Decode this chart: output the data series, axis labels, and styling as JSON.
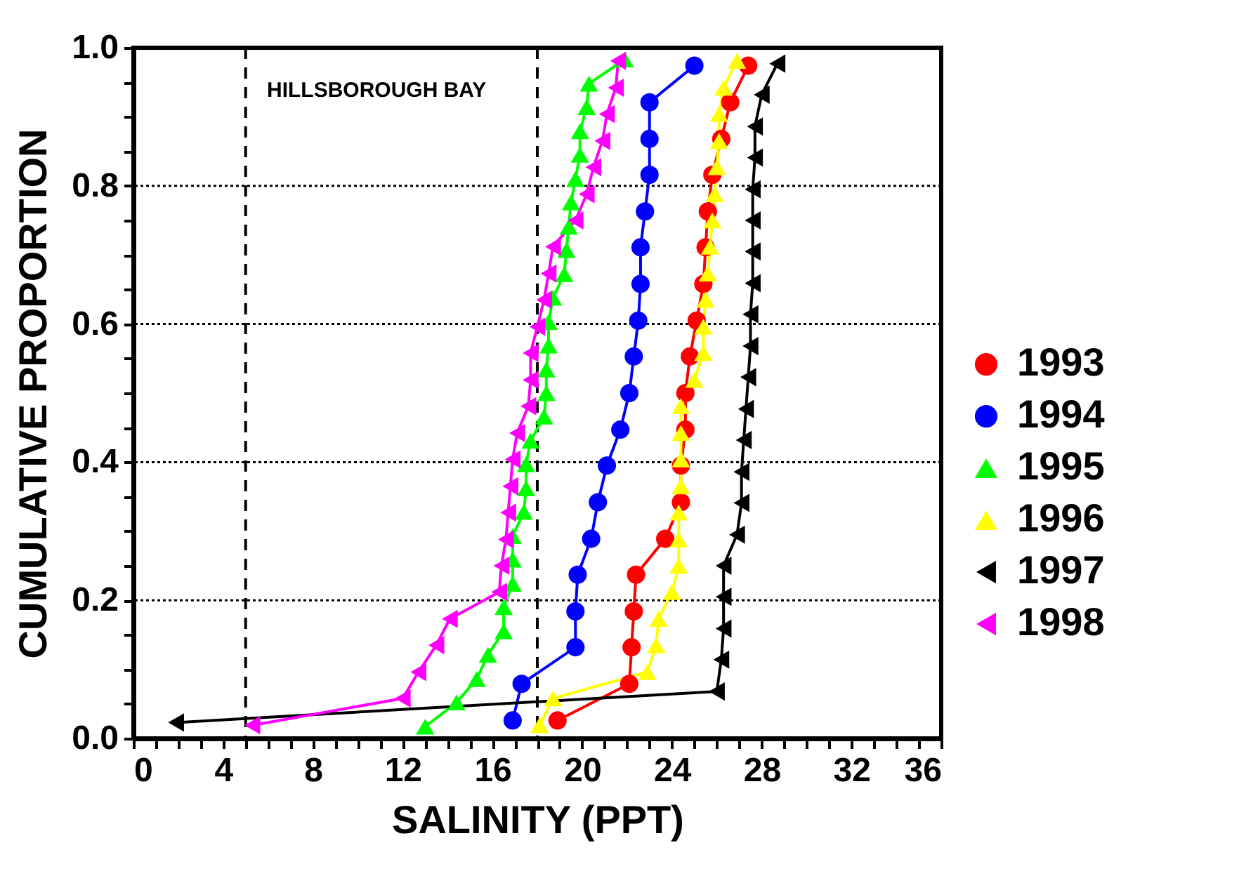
{
  "chart_data": {
    "type": "line",
    "xlabel": "SALINITY (PPT)",
    "ylabel": "CUMULATIVE PROPORTION",
    "annotations": [
      "HILLSBOROUGH BAY"
    ],
    "xlim": [
      0,
      36
    ],
    "ylim": [
      0,
      1
    ],
    "xticks": [
      0,
      {
        "value": 1,
        "label": null
      },
      {
        "value": 2,
        "label": null
      },
      {
        "value": 3,
        "label": null
      },
      4,
      {
        "value": 5,
        "label": null
      },
      {
        "value": 6,
        "label": null
      },
      {
        "value": 7,
        "label": null
      },
      8,
      {
        "value": 9,
        "label": null
      },
      {
        "value": 10,
        "label": null
      },
      {
        "value": 11,
        "label": null
      },
      12,
      {
        "value": 13,
        "label": null
      },
      {
        "value": 14,
        "label": null
      },
      {
        "value": 15,
        "label": null
      },
      16,
      {
        "value": 17,
        "label": null
      },
      {
        "value": 18,
        "label": null
      },
      {
        "value": 19,
        "label": null
      },
      20,
      {
        "value": 21,
        "label": null
      },
      {
        "value": 22,
        "label": null
      },
      {
        "value": 23,
        "label": null
      },
      24,
      {
        "value": 25,
        "label": null
      },
      {
        "value": 26,
        "label": null
      },
      {
        "value": 27,
        "label": null
      },
      28,
      {
        "value": 29,
        "label": null
      },
      {
        "value": 30,
        "label": null
      },
      {
        "value": 31,
        "label": null
      },
      32,
      {
        "value": 33,
        "label": null
      },
      {
        "value": 34,
        "label": null
      },
      {
        "value": 35,
        "label": null
      },
      36
    ],
    "yticks": [
      {
        "value": 0,
        "label": "0.0"
      },
      {
        "value": 0.05,
        "label": null
      },
      {
        "value": 0.1,
        "label": null
      },
      {
        "value": 0.15,
        "label": null
      },
      {
        "value": 0.2,
        "label": "0.2"
      },
      {
        "value": 0.25,
        "label": null
      },
      {
        "value": 0.3,
        "label": null
      },
      {
        "value": 0.35,
        "label": null
      },
      {
        "value": 0.4,
        "label": "0.4"
      },
      {
        "value": 0.45,
        "label": null
      },
      {
        "value": 0.5,
        "label": null
      },
      {
        "value": 0.55,
        "label": null
      },
      {
        "value": 0.6,
        "label": "0.6"
      },
      {
        "value": 0.65,
        "label": null
      },
      {
        "value": 0.7,
        "label": null
      },
      {
        "value": 0.75,
        "label": null
      },
      {
        "value": 0.8,
        "label": "0.8"
      },
      {
        "value": 0.85,
        "label": null
      },
      {
        "value": 0.9,
        "label": null
      },
      {
        "value": 0.95,
        "label": null
      },
      {
        "value": 1,
        "label": "1.0"
      }
    ],
    "grid": "y",
    "legend": "right",
    "ref_lines": [
      {
        "axis": "x",
        "value": 5,
        "label": null,
        "color": "#000000",
        "line_style": "dashed"
      },
      {
        "axis": "x",
        "value": 18,
        "label": null,
        "color": "#000000",
        "line_style": "dashed"
      }
    ],
    "series": [
      {
        "name": "1993",
        "color": "#ff0000",
        "marker": "circle",
        "x": [
          18.9,
          22.1,
          22.2,
          22.3,
          22.4,
          23.7,
          24.4,
          24.4,
          24.6,
          24.6,
          24.8,
          25.1,
          25.4,
          25.5,
          25.6,
          25.8,
          26.2,
          26.6,
          27.4
        ],
        "values": [
          0.026,
          0.079,
          0.132,
          0.184,
          0.237,
          0.289,
          0.342,
          0.395,
          0.447,
          0.5,
          0.553,
          0.605,
          0.658,
          0.711,
          0.763,
          0.816,
          0.868,
          0.921,
          0.974
        ]
      },
      {
        "name": "1994",
        "color": "#0000ff",
        "marker": "circle",
        "x": [
          16.9,
          17.3,
          19.7,
          19.7,
          19.8,
          20.4,
          20.7,
          21.1,
          21.7,
          22.1,
          22.3,
          22.5,
          22.6,
          22.6,
          22.8,
          23.0,
          23.0,
          23.0,
          25.0
        ],
        "values": [
          0.026,
          0.079,
          0.132,
          0.184,
          0.237,
          0.289,
          0.342,
          0.395,
          0.447,
          0.5,
          0.553,
          0.605,
          0.658,
          0.711,
          0.763,
          0.816,
          0.868,
          0.921,
          0.974
        ]
      },
      {
        "name": "1995",
        "color": "#00ff00",
        "marker": "triangle",
        "x": [
          13.0,
          14.4,
          15.3,
          15.8,
          16.5,
          16.5,
          16.9,
          16.9,
          16.9,
          17.4,
          17.5,
          17.5,
          17.7,
          18.3,
          18.4,
          18.4,
          18.5,
          18.5,
          18.7,
          19.2,
          19.3,
          19.4,
          19.5,
          19.7,
          19.9,
          19.9,
          20.2,
          20.3,
          21.9
        ],
        "values": [
          0.017,
          0.052,
          0.086,
          0.121,
          0.155,
          0.19,
          0.224,
          0.259,
          0.293,
          0.328,
          0.362,
          0.397,
          0.431,
          0.466,
          0.5,
          0.534,
          0.569,
          0.603,
          0.638,
          0.672,
          0.707,
          0.741,
          0.776,
          0.81,
          0.845,
          0.879,
          0.914,
          0.948,
          0.983
        ]
      },
      {
        "name": "1996",
        "color": "#ffff00",
        "marker": "triangle",
        "x": [
          18.1,
          18.7,
          22.9,
          23.3,
          23.4,
          24.0,
          24.3,
          24.3,
          24.3,
          24.4,
          24.4,
          24.4,
          24.4,
          25.0,
          25.4,
          25.4,
          25.5,
          25.6,
          25.7,
          25.8,
          25.9,
          26.0,
          26.1,
          26.1,
          26.3,
          26.9
        ],
        "values": [
          0.019,
          0.058,
          0.096,
          0.135,
          0.173,
          0.212,
          0.25,
          0.288,
          0.327,
          0.365,
          0.404,
          0.442,
          0.481,
          0.519,
          0.558,
          0.596,
          0.635,
          0.673,
          0.712,
          0.75,
          0.788,
          0.827,
          0.865,
          0.904,
          0.942,
          0.981
        ]
      },
      {
        "name": "1997",
        "color": "#000000",
        "marker": "triangle-left",
        "x": [
          1.9,
          26.0,
          26.2,
          26.3,
          26.3,
          26.3,
          26.9,
          27.1,
          27.1,
          27.2,
          27.3,
          27.4,
          27.5,
          27.5,
          27.6,
          27.6,
          27.6,
          27.6,
          27.7,
          27.7,
          28.0,
          28.7
        ],
        "values": [
          0.023,
          0.068,
          0.114,
          0.159,
          0.205,
          0.25,
          0.295,
          0.341,
          0.386,
          0.432,
          0.477,
          0.523,
          0.568,
          0.614,
          0.659,
          0.705,
          0.75,
          0.795,
          0.841,
          0.886,
          0.932,
          0.977
        ]
      },
      {
        "name": "1998",
        "color": "#ff00ff",
        "marker": "triangle-left",
        "x": [
          5.3,
          12.0,
          12.7,
          13.5,
          14.1,
          16.3,
          16.4,
          16.6,
          16.7,
          16.8,
          16.9,
          17.1,
          17.6,
          17.7,
          17.7,
          18.0,
          18.3,
          18.5,
          18.7,
          19.7,
          20.2,
          20.5,
          20.9,
          21.1,
          21.5,
          21.6
        ],
        "values": [
          0.019,
          0.058,
          0.096,
          0.135,
          0.173,
          0.212,
          0.25,
          0.288,
          0.327,
          0.365,
          0.404,
          0.442,
          0.481,
          0.519,
          0.558,
          0.596,
          0.635,
          0.673,
          0.712,
          0.75,
          0.788,
          0.827,
          0.865,
          0.904,
          0.942,
          0.981
        ]
      }
    ]
  }
}
